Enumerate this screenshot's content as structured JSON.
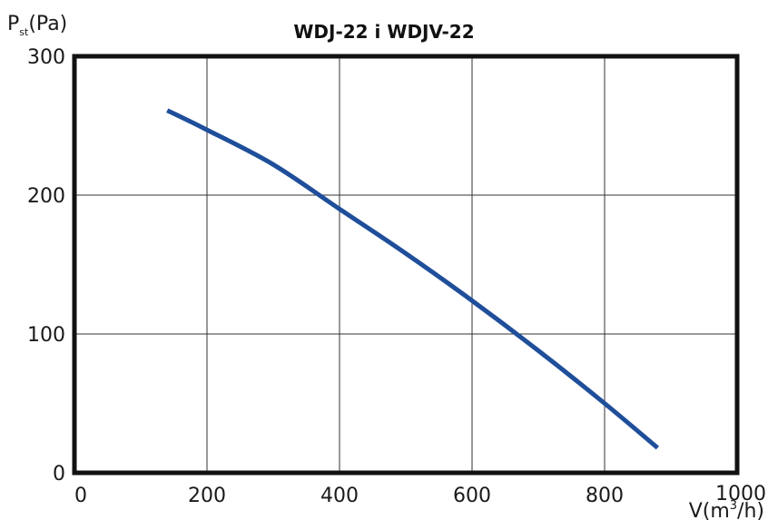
{
  "chart_data": {
    "type": "line",
    "title": "WDJ-22 i WDJV-22",
    "ylabel": {
      "main": "P",
      "sub": "st",
      "rest": "(Pa)"
    },
    "xlabel": {
      "main": "V(m",
      "sup": "3",
      "rest": "/h)"
    },
    "xlim": [
      0,
      1000
    ],
    "ylim": [
      0,
      300
    ],
    "xticks": [
      "0",
      "200",
      "400",
      "600",
      "800",
      "1000"
    ],
    "yticks": [
      "0",
      "100",
      "200",
      "300"
    ],
    "grid": true,
    "series": [
      {
        "color": "#1f4e9a",
        "x": [
          140,
          200,
          300,
          400,
          500,
          600,
          700,
          800,
          880
        ],
        "y": [
          261,
          247,
          222,
          190,
          158,
          124,
          88,
          50,
          18
        ]
      }
    ]
  }
}
